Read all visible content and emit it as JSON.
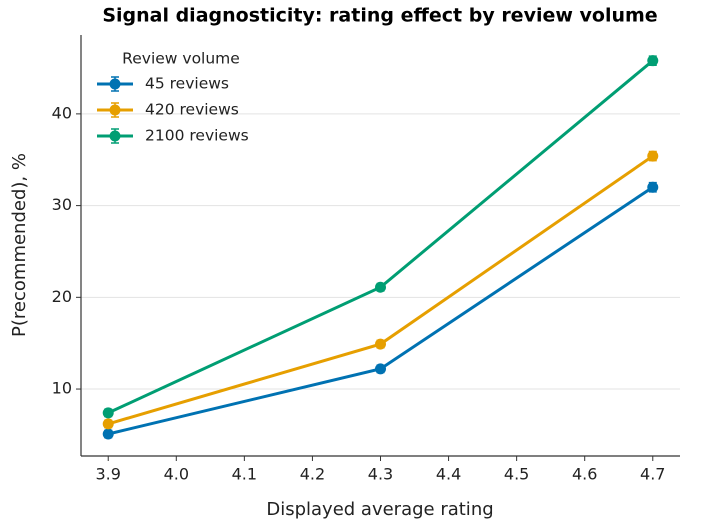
{
  "chart_data": {
    "type": "line",
    "title": "Signal diagnosticity: rating effect by review volume",
    "x_label": "Displayed average rating",
    "y_label": "P(recommended), %",
    "legend_title": "Review volume",
    "legend": "upper left",
    "grid": "y",
    "x": [
      3.9,
      4.3,
      4.7
    ],
    "xlim": [
      3.86,
      4.74
    ],
    "xticks": [
      3.9,
      {
        "value": 4,
        "label": "4.0"
      },
      4.1,
      4.2,
      4.3,
      4.4,
      4.5,
      4.6,
      4.7
    ],
    "ylim": [
      2.7,
      48.6
    ],
    "yticks": [
      10,
      20,
      30,
      40
    ],
    "series": [
      {
        "name": "45 reviews",
        "color": "#0072b2",
        "values": [
          5.1,
          12.2,
          32.0
        ],
        "errors": [
          0.4,
          0.4,
          0.5
        ]
      },
      {
        "name": "420 reviews",
        "color": "#e69f00",
        "values": [
          6.2,
          14.9,
          35.4
        ],
        "errors": [
          0.4,
          0.4,
          0.5
        ]
      },
      {
        "name": "2100 reviews",
        "color": "#009e73",
        "values": [
          7.4,
          21.1,
          45.8
        ],
        "errors": [
          0.4,
          0.4,
          0.5
        ]
      }
    ]
  }
}
